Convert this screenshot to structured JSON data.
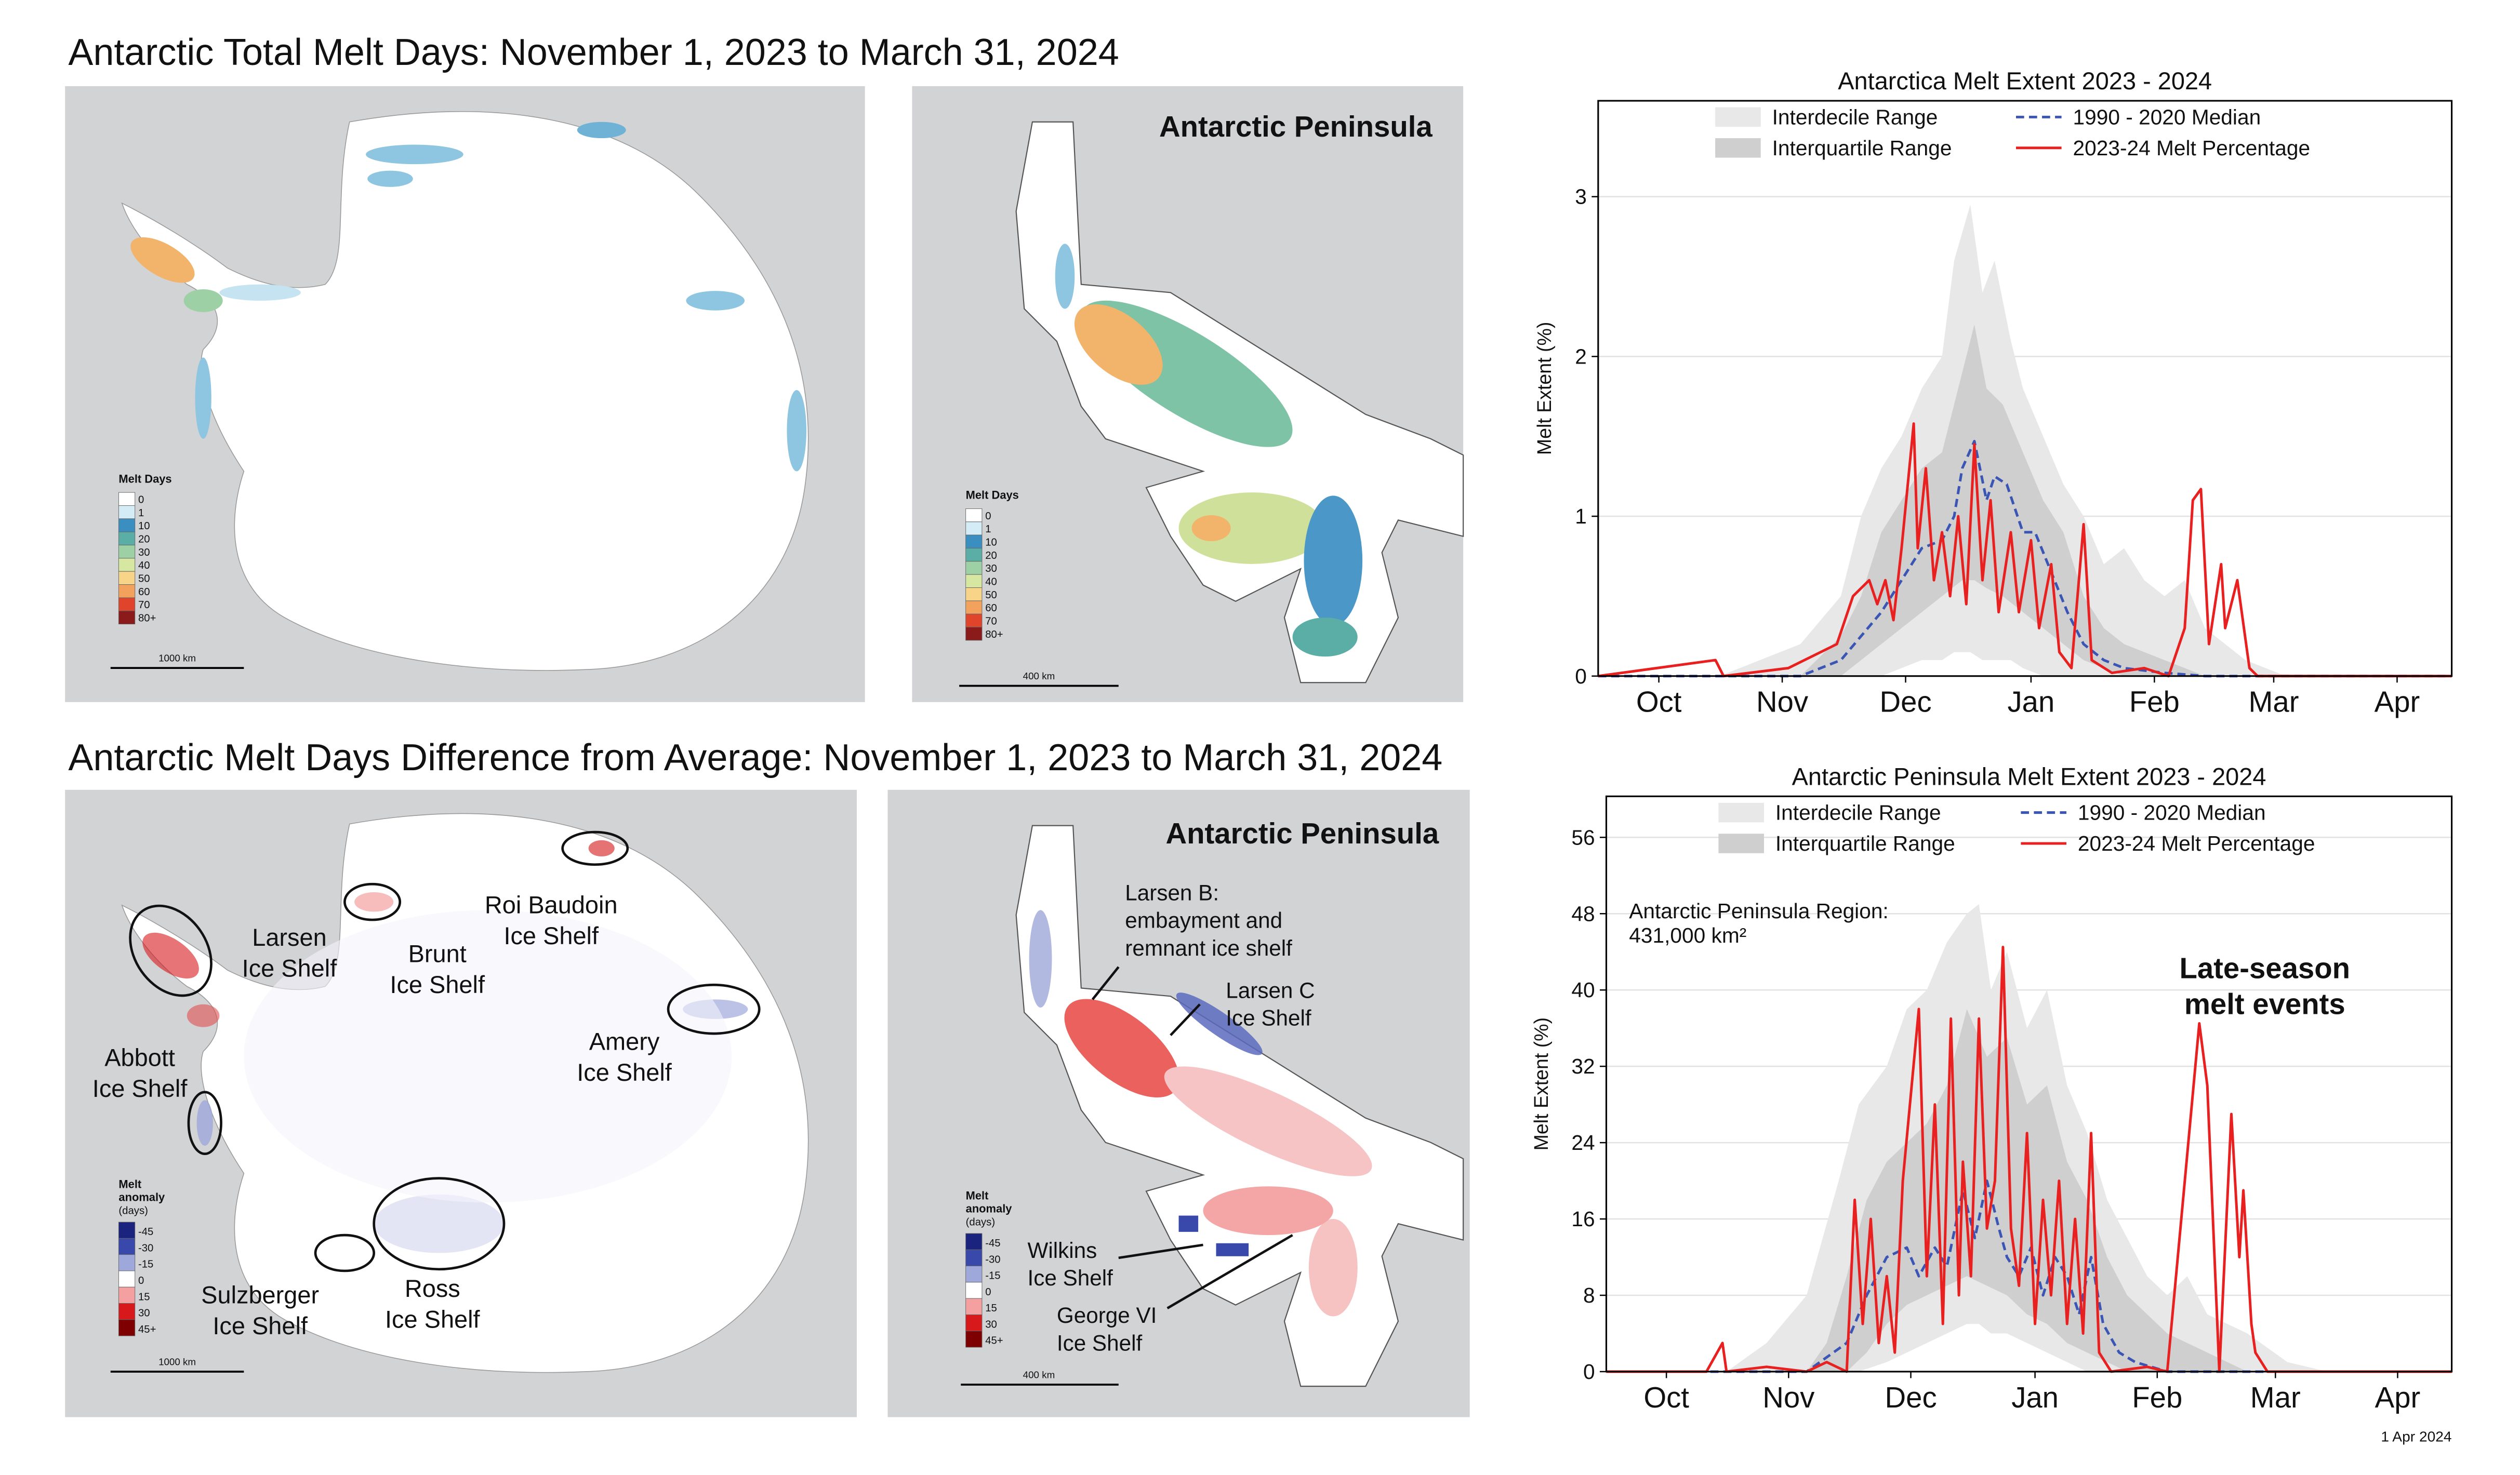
{
  "figure": {
    "titles": [
      "Antarctic Total Melt Days: November 1, 2023 to March 31, 2024",
      "Antarctic Melt Days Difference from Average: November 1, 2023 to March 31, 2024"
    ],
    "peninsula_label": "Antarctic Peninsula",
    "scales": [
      "1000 km",
      "400 km"
    ],
    "melt_days_legend": {
      "title": "Melt Days",
      "items": [
        {
          "label": "0",
          "color": "#ffffff"
        },
        {
          "label": "1",
          "color": "#d4ecf6"
        },
        {
          "label": "10",
          "color": "#3b8fc0"
        },
        {
          "label": "20",
          "color": "#5aaea6"
        },
        {
          "label": "30",
          "color": "#9dd0a4"
        },
        {
          "label": "40",
          "color": "#d6e7a1"
        },
        {
          "label": "50",
          "color": "#f7d487"
        },
        {
          "label": "60",
          "color": "#f2a25c"
        },
        {
          "label": "70",
          "color": "#e0452c"
        },
        {
          "label": "80+",
          "color": "#8b1a1a"
        }
      ]
    },
    "anomaly_legend": {
      "title": [
        "Melt",
        "anomaly"
      ],
      "unit": "(days)",
      "items": [
        {
          "label": "-45",
          "color": "#1a237e"
        },
        {
          "label": "-30",
          "color": "#3949ab"
        },
        {
          "label": "-15",
          "color": "#9fa8da"
        },
        {
          "label": "0",
          "color": "#ffffff"
        },
        {
          "label": "15",
          "color": "#f4a0a0"
        },
        {
          "label": "30",
          "color": "#d7191c"
        },
        {
          "label": "45+",
          "color": "#7f0000"
        }
      ]
    },
    "ice_shelf_labels": [
      [
        "Larsen",
        "Ice Shelf"
      ],
      [
        "Brunt",
        "Ice Shelf"
      ],
      [
        "Roi Baudoin",
        "Ice Shelf"
      ],
      [
        "Amery",
        "Ice Shelf"
      ],
      [
        "Abbott",
        "Ice Shelf"
      ],
      [
        "Sulzberger",
        "Ice Shelf"
      ],
      [
        "Ross",
        "Ice Shelf"
      ]
    ],
    "peninsula_labels": [
      [
        "Larsen B:",
        "embayment and",
        "remnant ice shelf"
      ],
      [
        "Larsen C",
        "Ice Shelf"
      ],
      [
        "Wilkins",
        "Ice Shelf"
      ],
      [
        "George VI",
        "Ice Shelf"
      ]
    ]
  },
  "chart_data": [
    {
      "type": "line",
      "title": "Antarctica Melt Extent 2023 - 2024",
      "ylabel": "Melt Extent (%)",
      "xlim": [
        0,
        211
      ],
      "xticks": [
        {
          "value": 15,
          "label": "Oct"
        },
        {
          "value": 45.5,
          "label": "Nov"
        },
        {
          "value": 76,
          "label": "Dec"
        },
        {
          "value": 107,
          "label": "Jan"
        },
        {
          "value": 137.5,
          "label": "Feb"
        },
        {
          "value": 167,
          "label": "Mar"
        },
        {
          "value": 197.5,
          "label": "Apr"
        }
      ],
      "ylim": [
        0,
        3.6
      ],
      "yticks": [
        0,
        1,
        2,
        3
      ],
      "grid": true,
      "series": [
        {
          "name": "Interdecile Range",
          "style": "band",
          "color": "#e8e8e8",
          "x": [
            0,
            30,
            40,
            50,
            60,
            65,
            70,
            75,
            80,
            85,
            88,
            92,
            95,
            98,
            102,
            105,
            110,
            115,
            120,
            125,
            130,
            135,
            140,
            145,
            150,
            155,
            160,
            170,
            211
          ],
          "values": [
            0,
            0,
            0.1,
            0.2,
            0.5,
            1.0,
            1.3,
            1.5,
            1.8,
            2.0,
            2.6,
            2.95,
            2.4,
            2.6,
            2.1,
            1.8,
            1.5,
            1.2,
            1.0,
            0.7,
            0.8,
            0.6,
            0.5,
            0.6,
            0.3,
            0.2,
            0.1,
            0,
            0
          ],
          "lower": [
            0,
            0,
            0,
            0,
            0,
            0,
            0,
            0.05,
            0.1,
            0.1,
            0.15,
            0.15,
            0.1,
            0.1,
            0.1,
            0.05,
            0,
            0,
            0,
            0,
            0,
            0,
            0,
            0,
            0,
            0,
            0,
            0,
            0
          ]
        },
        {
          "name": "Interquartile Range",
          "style": "band",
          "color": "#cfcfcf",
          "x": [
            0,
            50,
            60,
            65,
            70,
            75,
            80,
            85,
            90,
            93,
            96,
            100,
            105,
            110,
            115,
            120,
            125,
            130,
            140,
            150,
            211
          ],
          "values": [
            0,
            0,
            0.25,
            0.5,
            0.9,
            1.1,
            1.3,
            1.4,
            1.9,
            2.2,
            1.8,
            1.7,
            1.4,
            1.1,
            0.9,
            0.5,
            0.3,
            0.2,
            0.1,
            0,
            0
          ],
          "lower": [
            0,
            0,
            0,
            0.1,
            0.2,
            0.3,
            0.4,
            0.5,
            0.6,
            0.6,
            0.55,
            0.5,
            0.4,
            0.3,
            0.2,
            0.1,
            0.05,
            0,
            0,
            0,
            0
          ]
        },
        {
          "name": "1990 - 2020 Median",
          "style": "dashed",
          "color": "#3b55b5",
          "x": [
            0,
            50,
            60,
            65,
            70,
            75,
            80,
            85,
            88,
            90,
            93,
            96,
            98,
            101,
            105,
            108,
            112,
            116,
            120,
            125,
            130,
            140,
            150,
            211
          ],
          "values": [
            0,
            0,
            0.1,
            0.25,
            0.4,
            0.6,
            0.8,
            0.85,
            1.0,
            1.3,
            1.47,
            1.1,
            1.25,
            1.2,
            0.9,
            0.9,
            0.65,
            0.4,
            0.2,
            0.1,
            0.05,
            0.02,
            0,
            0
          ]
        },
        {
          "name": "2023-24 Melt Percentage",
          "style": "solid",
          "color": "#e8201f",
          "x": [
            0,
            29,
            31,
            47,
            59,
            63,
            67,
            69,
            71,
            73,
            75,
            78,
            79,
            81,
            83,
            85,
            87,
            89,
            91,
            93,
            95,
            97,
            99,
            102,
            104,
            107,
            109,
            112,
            114,
            117,
            120,
            122,
            127,
            135,
            141,
            145,
            147,
            149,
            151,
            154,
            155,
            158,
            161,
            163,
            211
          ],
          "values": [
            0,
            0.1,
            0,
            0.05,
            0.2,
            0.5,
            0.6,
            0.45,
            0.6,
            0.35,
            0.8,
            1.58,
            0.8,
            1.3,
            0.6,
            0.9,
            0.5,
            1.0,
            0.45,
            1.45,
            0.6,
            1.1,
            0.4,
            0.9,
            0.4,
            0.85,
            0.3,
            0.7,
            0.15,
            0.05,
            0.95,
            0.1,
            0.02,
            0.05,
            0,
            0.3,
            1.1,
            1.17,
            0.2,
            0.7,
            0.3,
            0.6,
            0.05,
            0,
            0
          ]
        }
      ]
    },
    {
      "type": "line",
      "title": "Antarctic Peninsula Melt Extent 2023 - 2024",
      "ylabel": "Melt Extent (%)",
      "xlim": [
        0,
        211
      ],
      "xticks": [
        {
          "value": 15,
          "label": "Oct"
        },
        {
          "value": 45.5,
          "label": "Nov"
        },
        {
          "value": 76,
          "label": "Dec"
        },
        {
          "value": 107,
          "label": "Jan"
        },
        {
          "value": 137.5,
          "label": "Feb"
        },
        {
          "value": 167,
          "label": "Mar"
        },
        {
          "value": 197.5,
          "label": "Apr"
        }
      ],
      "ylim": [
        0,
        60.3
      ],
      "yticks": [
        0,
        8,
        16,
        24,
        32,
        40,
        48,
        56
      ],
      "grid": true,
      "annotations": [
        [
          "Antarctic Peninsula Region:",
          "431,000 km²"
        ],
        [
          "Late-season",
          "melt events"
        ]
      ],
      "date_note": "1 Apr 2024",
      "series": [
        {
          "name": "Interdecile Range",
          "style": "band",
          "color": "#e8e8e8",
          "x": [
            0,
            30,
            40,
            50,
            58,
            63,
            70,
            75,
            80,
            85,
            90,
            93,
            96,
            100,
            105,
            110,
            115,
            120,
            125,
            130,
            135,
            140,
            145,
            150,
            155,
            160,
            170,
            180,
            211
          ],
          "values": [
            0,
            0,
            3,
            8,
            20,
            28,
            32,
            38,
            40,
            45,
            48,
            49,
            40,
            44,
            36,
            40,
            30,
            25,
            18,
            14,
            10,
            8,
            10,
            6,
            5,
            4,
            1,
            0,
            0
          ],
          "lower": [
            0,
            0,
            0,
            0,
            0,
            0,
            1,
            2,
            3,
            4,
            5,
            5,
            4,
            4,
            3,
            2,
            1,
            0,
            0,
            0,
            0,
            0,
            0,
            0,
            0,
            0,
            0,
            0,
            0
          ]
        },
        {
          "name": "Interquartile Range",
          "style": "band",
          "color": "#cfcfcf",
          "x": [
            0,
            50,
            55,
            60,
            65,
            70,
            75,
            80,
            85,
            90,
            95,
            100,
            105,
            110,
            115,
            120,
            125,
            130,
            140,
            150,
            160,
            211
          ],
          "values": [
            0,
            0,
            3,
            10,
            18,
            22,
            24,
            26,
            30,
            38,
            33,
            35,
            28,
            30,
            22,
            18,
            12,
            8,
            4,
            2,
            0,
            0
          ],
          "lower": [
            0,
            0,
            0,
            0,
            2,
            5,
            7,
            8,
            9,
            10,
            9,
            8,
            6,
            5,
            3,
            2,
            1,
            0,
            0,
            0,
            0,
            0
          ]
        },
        {
          "name": "1990 - 2020 Median",
          "style": "dashed",
          "color": "#3b55b5",
          "x": [
            0,
            50,
            60,
            65,
            70,
            75,
            78,
            82,
            85,
            89,
            92,
            95,
            98,
            100,
            103,
            106,
            109,
            112,
            115,
            118,
            121,
            124,
            128,
            132,
            140,
            211
          ],
          "values": [
            0,
            0,
            3,
            8,
            12,
            13,
            10,
            13,
            11,
            19,
            14,
            20,
            15,
            12,
            10,
            13,
            8,
            12,
            10,
            6,
            12,
            5,
            2,
            1,
            0,
            0
          ]
        },
        {
          "name": "2023-24 Melt Percentage",
          "style": "solid",
          "color": "#e8201f",
          "x": [
            0,
            25,
            29,
            30,
            40,
            50,
            55,
            60,
            62,
            64,
            66,
            68,
            70,
            72,
            74,
            78,
            80,
            82,
            84,
            86,
            88,
            89,
            91,
            93,
            95,
            97,
            99,
            101,
            103,
            105,
            107,
            109,
            111,
            113,
            115,
            117,
            119,
            121,
            123,
            126,
            135,
            140,
            148,
            150,
            152,
            153,
            156,
            158,
            159,
            161,
            162,
            165,
            211
          ],
          "values": [
            0,
            0,
            3,
            0,
            0.5,
            0,
            1,
            0,
            18,
            5,
            16,
            3,
            10,
            2,
            20,
            38,
            10,
            28,
            5,
            37,
            8,
            22,
            10,
            37,
            15,
            20,
            44.5,
            15,
            9,
            25,
            5,
            18,
            8,
            20,
            5,
            16,
            4,
            25,
            2,
            0,
            0.5,
            0,
            36.5,
            30,
            10,
            0,
            27,
            12,
            19,
            5,
            2,
            0,
            0
          ]
        }
      ]
    }
  ]
}
